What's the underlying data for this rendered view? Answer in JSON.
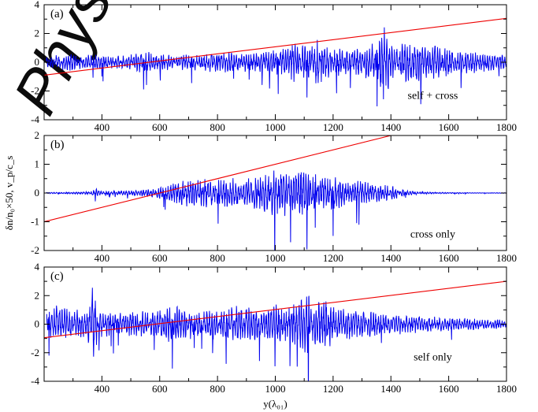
{
  "watermark": "Phys",
  "colors": {
    "blue": "#0000ee",
    "red": "#ee0000",
    "axis": "#000000"
  },
  "chart_data": [
    {
      "type": "line",
      "label": "(a)",
      "annotation": "self + cross",
      "xlim": [
        200,
        1800
      ],
      "ylim": [
        -4,
        4
      ],
      "yticks": [
        -4,
        -2,
        0,
        2,
        4
      ],
      "xticks": [
        400,
        600,
        800,
        1000,
        1200,
        1400,
        1600,
        1800
      ],
      "xlabel": "",
      "ylabel": "",
      "series": [
        {
          "color": "#ee0000",
          "kind": "line",
          "x": [
            200,
            1800
          ],
          "y": [
            -0.9,
            3.05
          ]
        },
        {
          "color": "#0000ee",
          "kind": "signal",
          "x": [
            210,
            260,
            300,
            340,
            380,
            420,
            460,
            500,
            550,
            600,
            650,
            700,
            750,
            800,
            850,
            900,
            950,
            1000,
            1040,
            1060,
            1080,
            1100,
            1130,
            1150,
            1180,
            1200,
            1240,
            1280,
            1320,
            1360,
            1375,
            1380,
            1385,
            1400,
            1450,
            1500,
            1550,
            1600,
            1650,
            1700,
            1750,
            1800
          ],
          "amp": [
            0.4,
            0.6,
            0.7,
            0.5,
            0.6,
            0.5,
            0.5,
            0.6,
            0.8,
            0.6,
            0.5,
            0.6,
            0.6,
            0.8,
            0.7,
            0.7,
            0.7,
            0.9,
            1.0,
            1.6,
            1.2,
            1.2,
            1.4,
            1.8,
            1.1,
            1.0,
            1.0,
            1.1,
            1.2,
            1.6,
            3.1,
            3.3,
            2.5,
            1.3,
            1.4,
            1.5,
            1.2,
            1.0,
            0.9,
            0.8,
            0.6,
            0.5
          ]
        }
      ]
    },
    {
      "type": "line",
      "label": "(b)",
      "annotation": "cross  only",
      "xlim": [
        200,
        1800
      ],
      "ylim": [
        -2,
        2
      ],
      "yticks": [
        -2,
        -1,
        0,
        1,
        2
      ],
      "xticks": [
        400,
        600,
        800,
        1000,
        1200,
        1400,
        1600,
        1800
      ],
      "xlabel": "",
      "ylabel": "δn/n₀×50, v_p/c_s",
      "series": [
        {
          "color": "#ee0000",
          "kind": "line",
          "x": [
            200,
            1400
          ],
          "y": [
            -1.0,
            2.0
          ]
        },
        {
          "color": "#0000ee",
          "kind": "signal",
          "x": [
            210,
            300,
            360,
            380,
            400,
            450,
            500,
            550,
            600,
            650,
            700,
            750,
            800,
            850,
            900,
            950,
            990,
            1000,
            1010,
            1050,
            1100,
            1150,
            1200,
            1250,
            1300,
            1350,
            1400,
            1430,
            1460,
            1500,
            1550,
            1600,
            1700,
            1800
          ],
          "amp": [
            0.02,
            0.03,
            0.06,
            0.15,
            0.05,
            0.08,
            0.1,
            0.12,
            0.2,
            0.35,
            0.5,
            0.55,
            0.6,
            0.55,
            0.6,
            0.7,
            0.9,
            1.2,
            0.9,
            0.8,
            0.9,
            0.6,
            0.6,
            0.5,
            0.45,
            0.35,
            0.3,
            0.15,
            0.08,
            0.05,
            0.03,
            0.02,
            0.01,
            0.01
          ]
        }
      ]
    },
    {
      "type": "line",
      "label": "(c)",
      "annotation": "self  only",
      "xlim": [
        200,
        1800
      ],
      "ylim": [
        -4,
        4
      ],
      "yticks": [
        -4,
        -2,
        0,
        2,
        4
      ],
      "xticks": [
        400,
        600,
        800,
        1000,
        1200,
        1400,
        1600,
        1800
      ],
      "xlabel": "y(λ₀₁)",
      "ylabel": "",
      "series": [
        {
          "color": "#ee0000",
          "kind": "line",
          "x": [
            200,
            1800
          ],
          "y": [
            -0.95,
            3.0
          ]
        },
        {
          "color": "#0000ee",
          "kind": "signal",
          "x": [
            210,
            250,
            300,
            350,
            370,
            380,
            400,
            450,
            500,
            550,
            600,
            650,
            700,
            750,
            800,
            850,
            900,
            950,
            1000,
            1050,
            1100,
            1110,
            1120,
            1150,
            1180,
            1200,
            1250,
            1300,
            1350,
            1400,
            1500,
            1600,
            1700,
            1800
          ],
          "amp": [
            0.9,
            1.6,
            1.0,
            1.1,
            2.8,
            1.5,
            0.9,
            0.8,
            0.9,
            1.0,
            1.0,
            1.4,
            1.1,
            1.0,
            1.2,
            1.3,
            1.3,
            1.2,
            1.4,
            1.3,
            2.0,
            3.0,
            1.6,
            1.6,
            1.9,
            1.3,
            1.1,
            1.0,
            0.9,
            0.8,
            0.6,
            0.5,
            0.4,
            0.3
          ]
        }
      ]
    }
  ]
}
